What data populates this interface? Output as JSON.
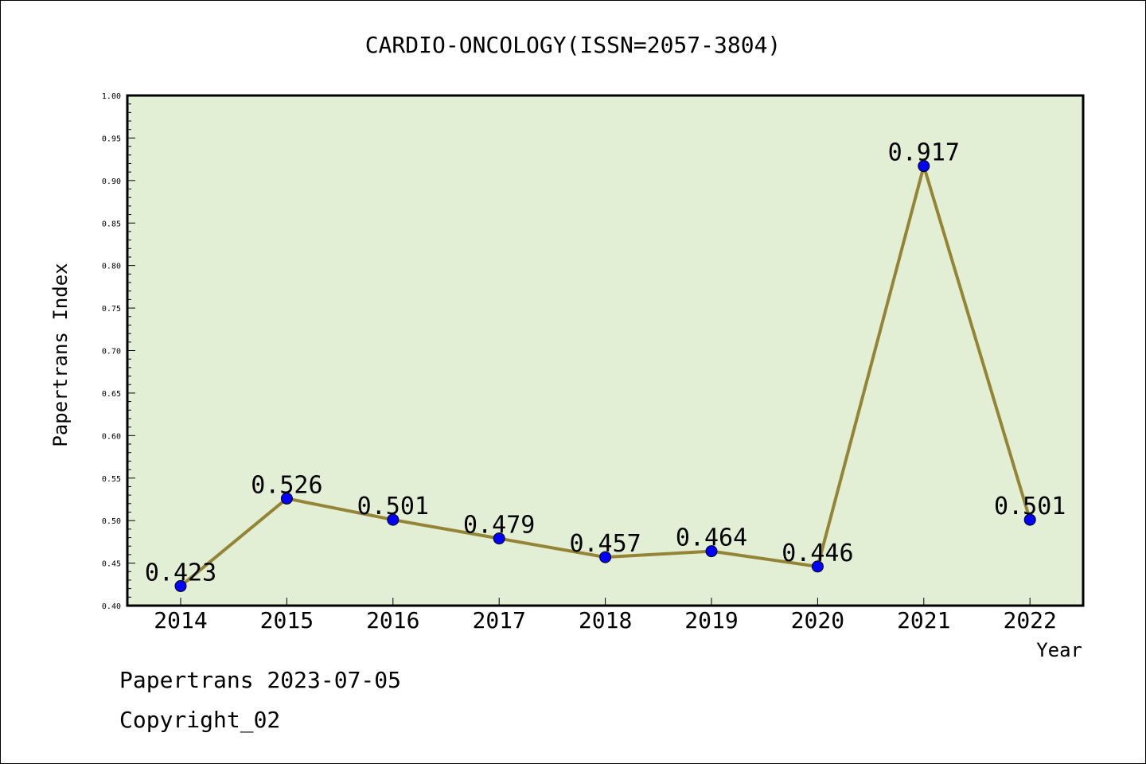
{
  "chart_data": {
    "type": "line",
    "title": "CARDIO-ONCOLOGY(ISSN=2057-3804)",
    "xlabel": "Year",
    "ylabel": "Papertrans Index",
    "x": [
      "2014",
      "2015",
      "2016",
      "2017",
      "2018",
      "2019",
      "2020",
      "2021",
      "2022"
    ],
    "series": [
      {
        "values": [
          0.423,
          0.526,
          0.501,
          0.479,
          0.457,
          0.464,
          0.446,
          0.917,
          0.501
        ],
        "labels": [
          "0.423",
          "0.526",
          "0.501",
          "0.479",
          "0.457",
          "0.464",
          "0.446",
          "0.917",
          "0.501"
        ]
      }
    ],
    "ylim": [
      0.4,
      1.0
    ],
    "yticks": [
      "0.40",
      "0.45",
      "0.50",
      "0.55",
      "0.60",
      "0.65",
      "0.70",
      "0.75",
      "0.80",
      "0.85",
      "0.90",
      "0.95",
      "1.00"
    ],
    "grid": false,
    "colors": {
      "plot_background": "#e2efd4",
      "line": "#948536",
      "marker": "#0000ff"
    }
  },
  "footer": {
    "date_line": "Papertrans 2023-07-05",
    "copyright": "Copyright_02"
  }
}
